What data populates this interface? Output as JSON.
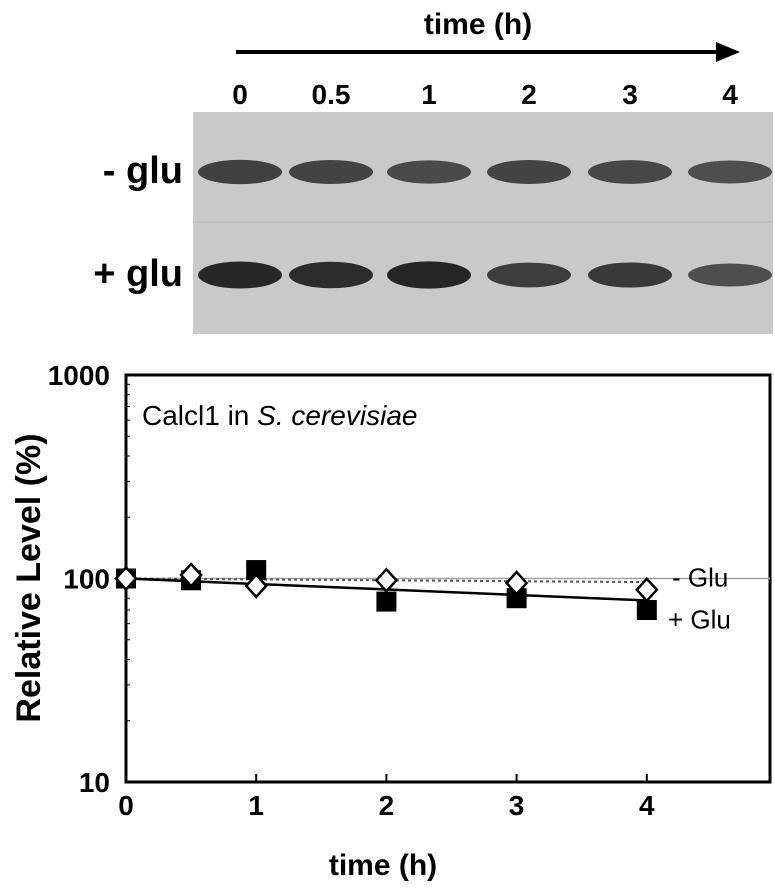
{
  "blot": {
    "time_label": "time (h)",
    "lanes": [
      "0",
      "0.5",
      "1",
      "2",
      "3",
      "4"
    ],
    "rows": [
      {
        "label": "- glu",
        "intensity": [
          0.8,
          0.78,
          0.74,
          0.78,
          0.76,
          0.72
        ]
      },
      {
        "label": "+ glu",
        "intensity": [
          0.95,
          0.92,
          0.96,
          0.82,
          0.84,
          0.72
        ]
      }
    ]
  },
  "chart_data": {
    "type": "scatter",
    "title_plain": "Calcl1 in ",
    "title_italic": "S. cerevisiae",
    "xlabel": "time (h)",
    "ylabel": "Relative Level (%)",
    "xlim": [
      0,
      5
    ],
    "ylim": [
      10,
      1000
    ],
    "yscale": "log",
    "xticks": [
      "0",
      "1",
      "2",
      "3",
      "4"
    ],
    "yticks": [
      "10",
      "100",
      "1000"
    ],
    "grid": false,
    "series": [
      {
        "name": "- Glu",
        "marker": "open-diamond",
        "x": [
          0,
          0.5,
          1,
          2,
          3,
          4
        ],
        "y": [
          100,
          104,
          92,
          98,
          95,
          88
        ],
        "trend": [
          100,
          96
        ]
      },
      {
        "name": "+ Glu",
        "marker": "filled-square",
        "x": [
          0,
          0.5,
          1,
          2,
          3,
          4
        ],
        "y": [
          100,
          98,
          110,
          77,
          80,
          70
        ],
        "trend": [
          100,
          78
        ]
      }
    ]
  }
}
